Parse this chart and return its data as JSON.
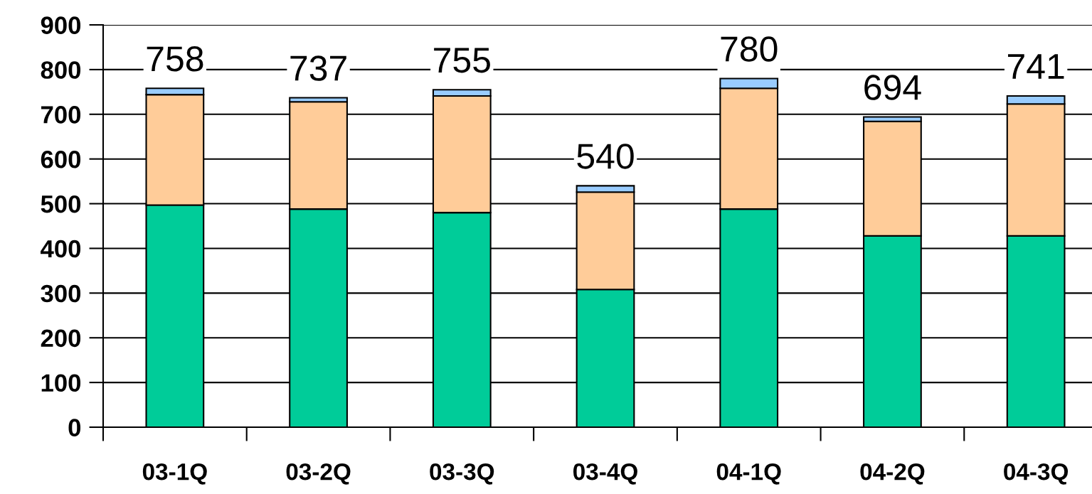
{
  "chart_data": {
    "type": "bar",
    "stacked": true,
    "categories": [
      "03-1Q",
      "03-2Q",
      "03-3Q",
      "03-4Q",
      "04-1Q",
      "04-2Q",
      "04-3Q"
    ],
    "series": [
      {
        "color": "#00cc99",
        "values": [
          497,
          488,
          480,
          308,
          488,
          428,
          428
        ]
      },
      {
        "color": "#ffcc99",
        "values": [
          247,
          240,
          261,
          218,
          270,
          256,
          295
        ]
      },
      {
        "color": "#99ccff",
        "values": [
          14,
          9,
          14,
          14,
          22,
          10,
          18
        ]
      }
    ],
    "totals": [
      "758",
      "737",
      "755",
      "540",
      "780",
      "694",
      "741"
    ],
    "ylim": [
      0,
      900
    ],
    "yticks": [
      0,
      100,
      200,
      300,
      400,
      500,
      600,
      700,
      800,
      900
    ],
    "grid": "y",
    "legend": false
  }
}
